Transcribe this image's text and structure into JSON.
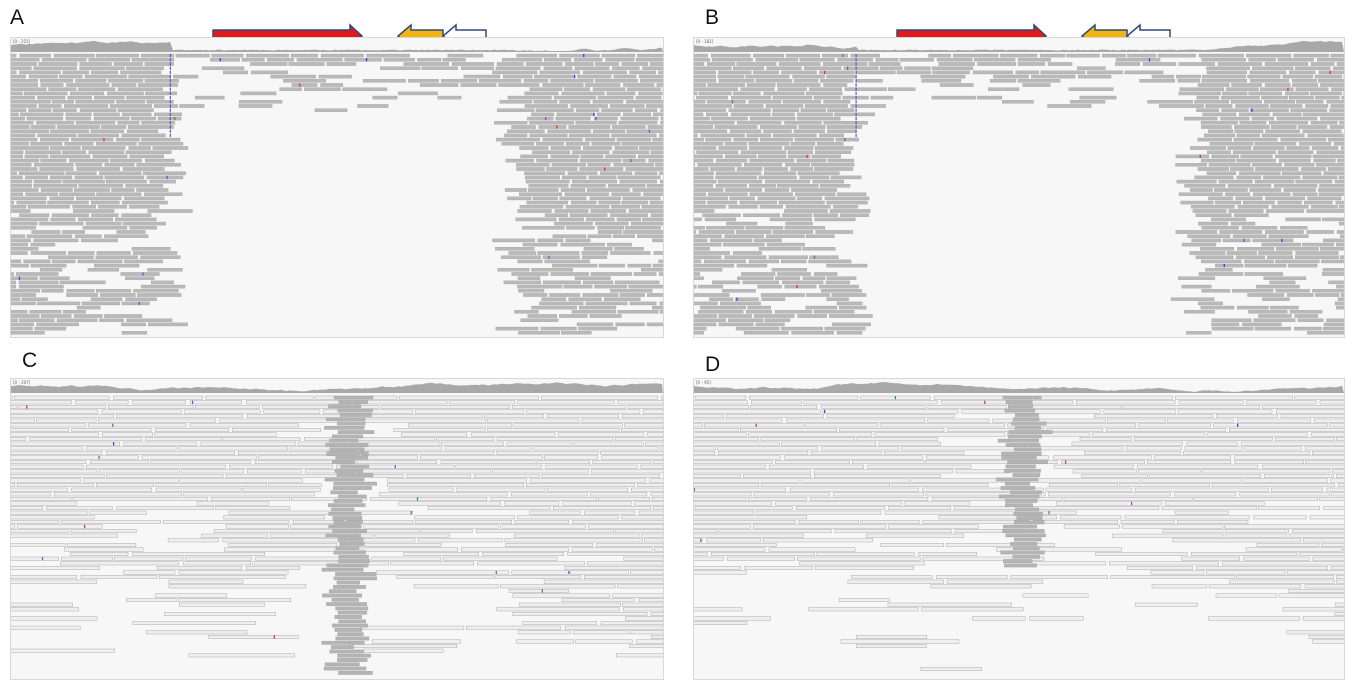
{
  "panels": [
    {
      "id": "A",
      "label": "A",
      "coverage_range_text": "[0 - 215]",
      "gap": [
        0.245,
        0.765
      ],
      "colors": {
        "coverage": "#a8a8a8",
        "read": "#b9b9b9",
        "read_stroke": "#9e9e9e"
      }
    },
    {
      "id": "B",
      "label": "B",
      "coverage_range_text": "[0 - 182]",
      "gap": [
        0.25,
        0.765
      ],
      "colors": {
        "coverage": "#a8a8a8",
        "read": "#b9b9b9",
        "read_stroke": "#9e9e9e"
      }
    },
    {
      "id": "C",
      "label": "C",
      "coverage_range_text": "[0 - 207]",
      "colors": {
        "coverage": "#a8a8a8",
        "read": "#efefef",
        "read_stroke": "#9a9a9a",
        "spike": "#b4b4b4"
      }
    },
    {
      "id": "D",
      "label": "D",
      "coverage_range_text": "[0 - 95]",
      "colors": {
        "coverage": "#a8a8a8",
        "read": "#efefef",
        "read_stroke": "#9a9a9a",
        "spike": "#b4b4b4"
      }
    }
  ],
  "arrows": {
    "red": {
      "fill": "#e01a1a",
      "stroke": "#2e4a7a"
    },
    "yellow": {
      "fill": "#f3b40f",
      "stroke": "#2e4a7a"
    },
    "hollow": {
      "fill": "#ffffff",
      "stroke": "#2e4a7a"
    }
  },
  "mismatch_colors": [
    "#3b3bd6",
    "#c23b3b",
    "#2f9a2f",
    "#9a3bd6"
  ]
}
